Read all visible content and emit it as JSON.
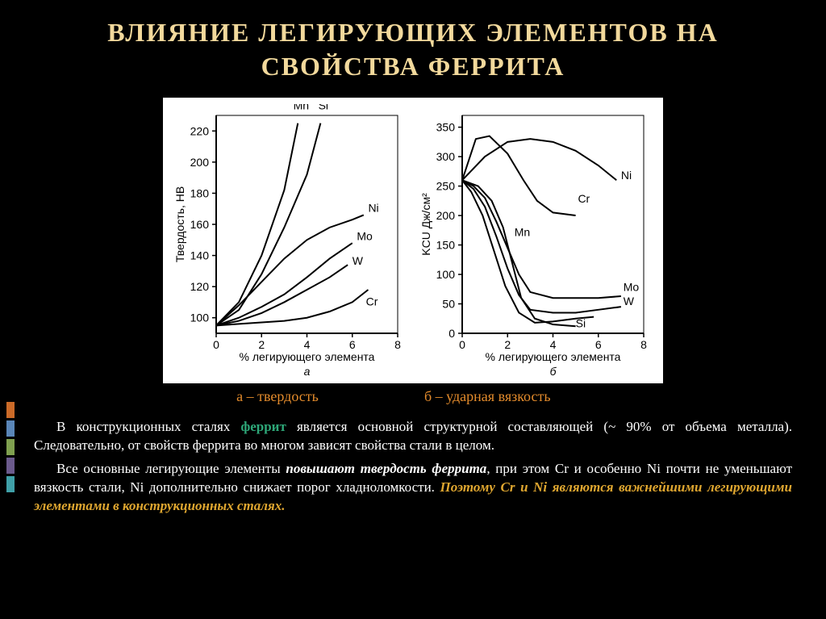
{
  "title": "ВЛИЯНИЕ ЛЕГИРУЮЩИХ ЭЛЕМЕНТОВ НА СВОЙСТВА ФЕРРИТА",
  "captions": {
    "a": "а – твердость",
    "b": "б – ударная вязкость"
  },
  "paragraph1_pre": "В конструкционных сталях ",
  "paragraph1_kw": "феррит",
  "paragraph1_post": " является основной структурной составляющей (~ 90% от объема металла). Следовательно, от свойств феррита во многом зависят свойства стали в целом.",
  "paragraph2_pre": "Все основные легирующие элементы ",
  "paragraph2_bold": "повышают твердость феррита",
  "paragraph2_mid": ", при этом Cr и особенно Ni почти не уменьшают вязкость стали, Ni дополнительно снижает порог хладноломкости. ",
  "paragraph2_gold": "Поэтому Cr и Ni являются важнейшими легирующими элементами в конструкционных сталях.",
  "chart_a": {
    "type": "line",
    "xlabel": "% легирующего элемента",
    "ylabel": "Твердость, HB",
    "sublabel": "а",
    "xlim": [
      0,
      8
    ],
    "ylim": [
      90,
      230
    ],
    "xticks": [
      0,
      2,
      4,
      6,
      8
    ],
    "yticks": [
      100,
      120,
      140,
      160,
      180,
      200,
      220
    ],
    "background": "#ffffff",
    "line_color": "#000000",
    "text_color": "#000000",
    "tick_len": 5,
    "axis_width": 2,
    "line_width": 2,
    "fontsize": 14,
    "series": {
      "Mn": {
        "pts": [
          [
            0,
            95
          ],
          [
            1,
            110
          ],
          [
            2,
            140
          ],
          [
            3,
            182
          ],
          [
            3.6,
            225
          ]
        ],
        "lx": 3.4,
        "ly": 234
      },
      "Si": {
        "pts": [
          [
            0,
            95
          ],
          [
            1,
            105
          ],
          [
            2,
            128
          ],
          [
            3,
            158
          ],
          [
            4,
            192
          ],
          [
            4.6,
            225
          ]
        ],
        "lx": 4.5,
        "ly": 234
      },
      "Ni": {
        "pts": [
          [
            0,
            95
          ],
          [
            1,
            108
          ],
          [
            2,
            123
          ],
          [
            3,
            138
          ],
          [
            4,
            150
          ],
          [
            5,
            158
          ],
          [
            6,
            163
          ],
          [
            6.5,
            166
          ]
        ],
        "lx": 6.7,
        "ly": 168
      },
      "Mo": {
        "pts": [
          [
            0,
            95
          ],
          [
            1,
            100
          ],
          [
            2,
            107
          ],
          [
            3,
            115
          ],
          [
            4,
            126
          ],
          [
            5,
            138
          ],
          [
            6,
            148
          ]
        ],
        "lx": 6.2,
        "ly": 150
      },
      "W": {
        "pts": [
          [
            0,
            95
          ],
          [
            1,
            98
          ],
          [
            2,
            103
          ],
          [
            3,
            110
          ],
          [
            4,
            118
          ],
          [
            5,
            126
          ],
          [
            5.8,
            134
          ]
        ],
        "lx": 6.0,
        "ly": 134
      },
      "Cr": {
        "pts": [
          [
            0,
            95
          ],
          [
            1,
            96
          ],
          [
            2,
            97
          ],
          [
            3,
            98
          ],
          [
            4,
            100
          ],
          [
            5,
            104
          ],
          [
            6,
            110
          ],
          [
            6.7,
            118
          ]
        ],
        "lx": 6.6,
        "ly": 108
      }
    }
  },
  "chart_b": {
    "type": "line",
    "xlabel": "% легирующего элемента",
    "ylabel": "KCU Дж/см²",
    "sublabel": "б",
    "xlim": [
      0,
      8
    ],
    "ylim": [
      0,
      370
    ],
    "xticks": [
      0,
      2,
      4,
      6,
      8
    ],
    "yticks": [
      0,
      50,
      100,
      150,
      200,
      250,
      300,
      350
    ],
    "background": "#ffffff",
    "line_color": "#000000",
    "text_color": "#000000",
    "tick_len": 5,
    "axis_width": 2,
    "line_width": 2,
    "fontsize": 14,
    "series": {
      "Ni": {
        "pts": [
          [
            0,
            260
          ],
          [
            1,
            300
          ],
          [
            2,
            325
          ],
          [
            3,
            330
          ],
          [
            4,
            325
          ],
          [
            5,
            310
          ],
          [
            6,
            285
          ],
          [
            6.8,
            260
          ]
        ],
        "lx": 7.0,
        "ly": 262
      },
      "Cr": {
        "pts": [
          [
            0,
            260
          ],
          [
            0.6,
            330
          ],
          [
            1.2,
            335
          ],
          [
            2,
            305
          ],
          [
            2.7,
            260
          ],
          [
            3.3,
            225
          ],
          [
            4,
            205
          ],
          [
            5,
            200
          ]
        ],
        "lx": 5.1,
        "ly": 222
      },
      "Mn": {
        "pts": [
          [
            0,
            260
          ],
          [
            0.7,
            250
          ],
          [
            1.3,
            225
          ],
          [
            1.8,
            180
          ],
          [
            2.2,
            120
          ],
          [
            2.6,
            60
          ],
          [
            3.2,
            25
          ],
          [
            4,
            15
          ],
          [
            5,
            12
          ]
        ],
        "lx": 2.3,
        "ly": 165
      },
      "Mo": {
        "pts": [
          [
            0,
            260
          ],
          [
            0.5,
            250
          ],
          [
            1,
            230
          ],
          [
            1.5,
            190
          ],
          [
            2,
            145
          ],
          [
            2.5,
            100
          ],
          [
            3,
            70
          ],
          [
            4,
            60
          ],
          [
            5,
            60
          ],
          [
            6,
            60
          ],
          [
            7,
            63
          ]
        ],
        "lx": 7.1,
        "ly": 72
      },
      "W": {
        "pts": [
          [
            0,
            260
          ],
          [
            0.5,
            245
          ],
          [
            1,
            215
          ],
          [
            1.5,
            165
          ],
          [
            2,
            110
          ],
          [
            2.5,
            65
          ],
          [
            3,
            40
          ],
          [
            4,
            35
          ],
          [
            5,
            35
          ],
          [
            6,
            40
          ],
          [
            7,
            45
          ]
        ],
        "lx": 7.1,
        "ly": 48
      },
      "Si": {
        "pts": [
          [
            0,
            260
          ],
          [
            0.4,
            240
          ],
          [
            0.9,
            200
          ],
          [
            1.4,
            140
          ],
          [
            1.9,
            80
          ],
          [
            2.5,
            35
          ],
          [
            3.2,
            18
          ],
          [
            4,
            20
          ],
          [
            5,
            25
          ],
          [
            5.8,
            28
          ]
        ],
        "lx": 5.0,
        "ly": 10
      }
    }
  }
}
